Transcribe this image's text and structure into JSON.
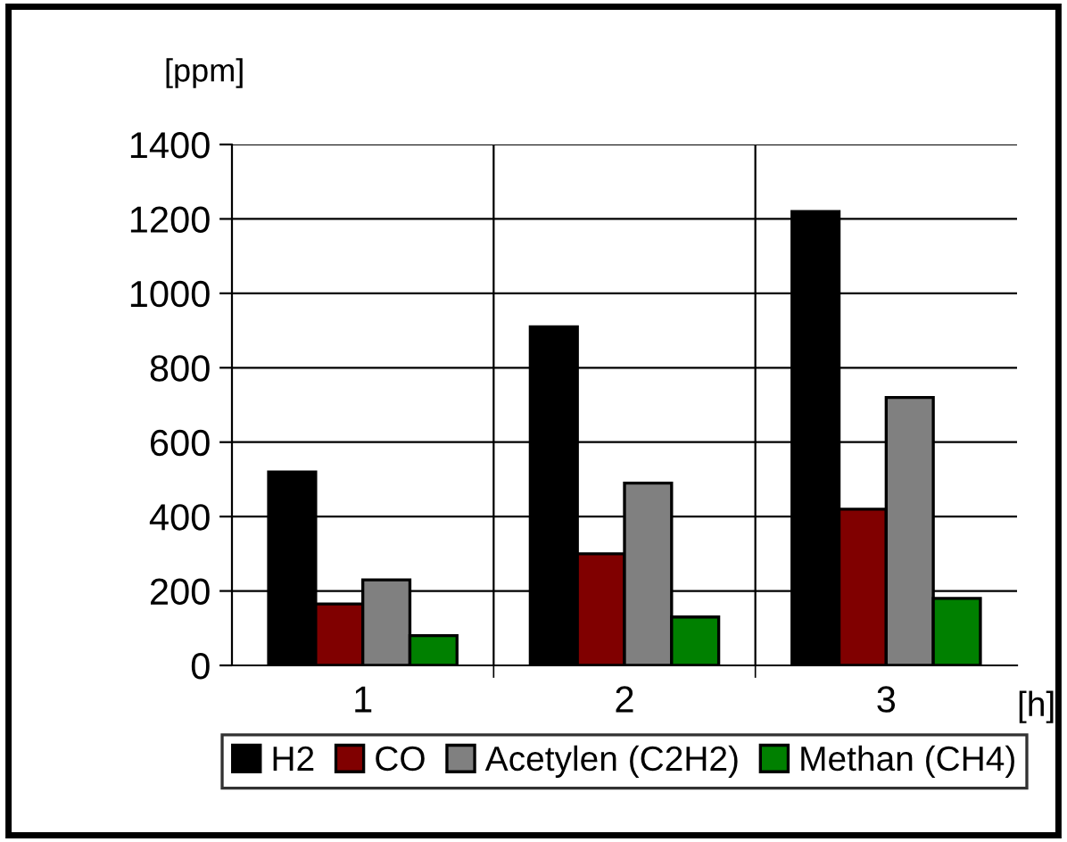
{
  "chart_data": {
    "type": "bar",
    "ylabel": "[ppm]",
    "xlabel": "[h]",
    "categories": [
      "1",
      "2",
      "3"
    ],
    "series": [
      {
        "name": "H2",
        "color": "#000000",
        "values": [
          520,
          910,
          1220
        ]
      },
      {
        "name": "CO",
        "color": "#800000",
        "values": [
          165,
          300,
          420
        ]
      },
      {
        "name": "Acetylen (C2H2)",
        "color": "#808080",
        "values": [
          230,
          490,
          720
        ]
      },
      {
        "name": "Methan (CH4)",
        "color": "#008000",
        "values": [
          80,
          130,
          180
        ]
      }
    ],
    "ylim": [
      0,
      1400
    ],
    "yticks": [
      0,
      200,
      400,
      600,
      800,
      1000,
      1200,
      1400
    ],
    "grid": true,
    "legend": "bottom"
  }
}
